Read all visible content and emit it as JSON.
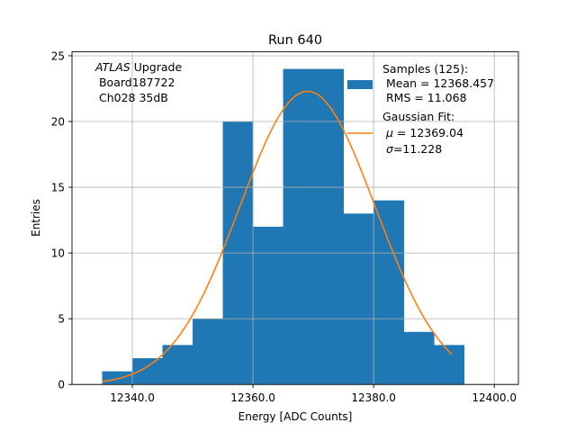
{
  "chart_data": {
    "type": "bar",
    "title": "Run 640",
    "xlabel": "Energy [ADC Counts]",
    "ylabel": "Entries",
    "xlim": [
      12330,
      12404
    ],
    "ylim": [
      0,
      25.3
    ],
    "grid": true,
    "x_ticks": [
      {
        "value": 12340,
        "label": "12340.0"
      },
      {
        "value": 12360,
        "label": "12360.0"
      },
      {
        "value": 12380,
        "label": "12380.0"
      },
      {
        "value": 12400,
        "label": "12400.0"
      }
    ],
    "y_ticks": [
      {
        "value": 0,
        "label": "0"
      },
      {
        "value": 5,
        "label": "5"
      },
      {
        "value": 10,
        "label": "10"
      },
      {
        "value": 15,
        "label": "15"
      },
      {
        "value": 20,
        "label": "20"
      },
      {
        "value": 25,
        "label": "25"
      }
    ],
    "histogram": {
      "color": "#1f77b4",
      "bins": [
        {
          "x0": 12335.0,
          "x1": 12340.0,
          "count": 1
        },
        {
          "x0": 12340.0,
          "x1": 12345.0,
          "count": 2
        },
        {
          "x0": 12345.0,
          "x1": 12350.0,
          "count": 3
        },
        {
          "x0": 12350.0,
          "x1": 12355.0,
          "count": 5
        },
        {
          "x0": 12355.0,
          "x1": 12360.0,
          "count": 20
        },
        {
          "x0": 12360.0,
          "x1": 12365.0,
          "count": 12
        },
        {
          "x0": 12365.0,
          "x1": 12370.0,
          "count": 24
        },
        {
          "x0": 12370.0,
          "x1": 12375.0,
          "count": 24
        },
        {
          "x0": 12375.0,
          "x1": 12380.0,
          "count": 13
        },
        {
          "x0": 12380.0,
          "x1": 12385.0,
          "count": 14
        },
        {
          "x0": 12385.0,
          "x1": 12390.0,
          "count": 4
        },
        {
          "x0": 12390.0,
          "x1": 12395.0,
          "count": 3
        }
      ]
    },
    "fit": {
      "color": "#ff7f0e",
      "mu": 12369.04,
      "sigma": 11.228,
      "amplitude": 22.3,
      "x_start": 12335.0,
      "x_end": 12393.0
    },
    "annotation": {
      "italic": "ATLAS",
      "rest": " Upgrade",
      "line2": " Board187722",
      "line3": " Ch028 35dB"
    },
    "legend": {
      "position": "top-right",
      "histogram_entry": [
        "Samples (125):",
        " Mean = 12368.457",
        " RMS = 11.068"
      ],
      "fit_entry": {
        "title": "Gaussian Fit:",
        "mu_symbol": "μ",
        "mu_text": " = 12369.04",
        "sigma_symbol": "σ",
        "sigma_text": "=11.228"
      }
    }
  }
}
